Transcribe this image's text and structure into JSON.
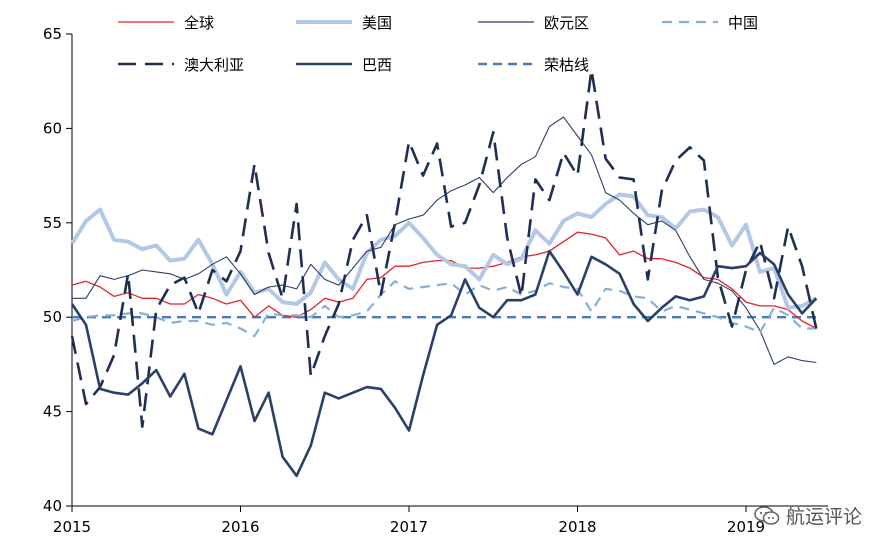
{
  "chart_data": {
    "type": "line",
    "title": "",
    "xlabel": "",
    "ylabel": "",
    "xlim": [
      2015,
      2019.5
    ],
    "ylim": [
      40,
      65
    ],
    "x_ticks": [
      2015,
      2016,
      2017,
      2018,
      2019
    ],
    "x_tick_labels": [
      "2015",
      "2016",
      "2017",
      "2018",
      "2019"
    ],
    "y_ticks": [
      40,
      45,
      50,
      55,
      60,
      65
    ],
    "y_tick_labels": [
      "40",
      "45",
      "50",
      "55",
      "60",
      "65"
    ],
    "grid": false,
    "legend_position": "top",
    "reference_line": {
      "name": "荣枯线",
      "value": 50,
      "color": "#4a7ab8"
    },
    "series": [
      {
        "name": "全球",
        "color": "#e0262a",
        "width": 1.3,
        "dash": "",
        "x": [
          2015.0,
          2015.083,
          2015.167,
          2015.25,
          2015.333,
          2015.417,
          2015.5,
          2015.583,
          2015.667,
          2015.75,
          2015.833,
          2015.917,
          2016.0,
          2016.083,
          2016.167,
          2016.25,
          2016.333,
          2016.417,
          2016.5,
          2016.583,
          2016.667,
          2016.75,
          2016.833,
          2016.917,
          2017.0,
          2017.083,
          2017.167,
          2017.25,
          2017.333,
          2017.417,
          2017.5,
          2017.583,
          2017.667,
          2017.75,
          2017.833,
          2017.917,
          2018.0,
          2018.083,
          2018.167,
          2018.25,
          2018.333,
          2018.417,
          2018.5,
          2018.583,
          2018.667,
          2018.75,
          2018.833,
          2018.917,
          2019.0,
          2019.083,
          2019.167,
          2019.25,
          2019.333,
          2019.417
        ],
        "y": [
          51.7,
          51.9,
          51.6,
          51.1,
          51.3,
          51.0,
          51.0,
          50.7,
          50.7,
          51.2,
          51.0,
          50.7,
          50.9,
          50.0,
          50.6,
          50.1,
          50.0,
          50.4,
          51.0,
          50.8,
          51.0,
          52.0,
          52.1,
          52.7,
          52.7,
          52.9,
          53.0,
          53.0,
          52.6,
          52.6,
          52.7,
          52.9,
          53.2,
          53.3,
          53.5,
          54.0,
          54.5,
          54.4,
          54.2,
          53.3,
          53.5,
          53.1,
          53.1,
          52.9,
          52.6,
          52.1,
          52.0,
          51.5,
          50.8,
          50.6,
          50.6,
          50.4,
          49.8,
          49.4
        ]
      },
      {
        "name": "美国",
        "color": "#b3c7e6",
        "width": 4,
        "dash": "",
        "x": [
          2015.0,
          2015.083,
          2015.167,
          2015.25,
          2015.333,
          2015.417,
          2015.5,
          2015.583,
          2015.667,
          2015.75,
          2015.833,
          2015.917,
          2016.0,
          2016.083,
          2016.167,
          2016.25,
          2016.333,
          2016.417,
          2016.5,
          2016.583,
          2016.667,
          2016.75,
          2016.833,
          2016.917,
          2017.0,
          2017.083,
          2017.167,
          2017.25,
          2017.333,
          2017.417,
          2017.5,
          2017.583,
          2017.667,
          2017.75,
          2017.833,
          2017.917,
          2018.0,
          2018.083,
          2018.167,
          2018.25,
          2018.333,
          2018.417,
          2018.5,
          2018.583,
          2018.667,
          2018.75,
          2018.833,
          2018.917,
          2019.0,
          2019.083,
          2019.167,
          2019.25,
          2019.333,
          2019.417
        ],
        "y": [
          53.9,
          55.1,
          55.7,
          54.1,
          54.0,
          53.6,
          53.8,
          53.0,
          53.1,
          54.1,
          52.8,
          51.2,
          52.4,
          51.3,
          51.5,
          50.8,
          50.7,
          51.3,
          52.9,
          52.0,
          51.5,
          53.4,
          54.1,
          54.3,
          55.0,
          54.2,
          53.3,
          52.8,
          52.7,
          52.0,
          53.3,
          52.8,
          53.1,
          54.6,
          53.9,
          55.1,
          55.5,
          55.3,
          56.0,
          56.5,
          56.4,
          55.4,
          55.3,
          54.7,
          55.6,
          55.7,
          55.3,
          53.8,
          54.9,
          52.4,
          52.6,
          50.5,
          50.6,
          51.0
        ]
      },
      {
        "name": "欧元区",
        "color": "#2c3e6b",
        "width": 1.1,
        "dash": "",
        "x": [
          2015.0,
          2015.083,
          2015.167,
          2015.25,
          2015.333,
          2015.417,
          2015.5,
          2015.583,
          2015.667,
          2015.75,
          2015.833,
          2015.917,
          2016.0,
          2016.083,
          2016.167,
          2016.25,
          2016.333,
          2016.417,
          2016.5,
          2016.583,
          2016.667,
          2016.75,
          2016.833,
          2016.917,
          2017.0,
          2017.083,
          2017.167,
          2017.25,
          2017.333,
          2017.417,
          2017.5,
          2017.583,
          2017.667,
          2017.75,
          2017.833,
          2017.917,
          2018.0,
          2018.083,
          2018.167,
          2018.25,
          2018.333,
          2018.417,
          2018.5,
          2018.583,
          2018.667,
          2018.75,
          2018.833,
          2018.917,
          2019.0,
          2019.083,
          2019.167,
          2019.25,
          2019.333,
          2019.417
        ],
        "y": [
          51.0,
          51.0,
          52.2,
          52.0,
          52.2,
          52.5,
          52.4,
          52.3,
          52.0,
          52.3,
          52.8,
          53.2,
          52.3,
          51.2,
          51.6,
          51.7,
          51.5,
          52.8,
          52.0,
          51.7,
          52.6,
          53.5,
          53.7,
          54.9,
          55.2,
          55.4,
          56.2,
          56.7,
          57.0,
          57.4,
          56.6,
          57.4,
          58.1,
          58.5,
          60.1,
          60.6,
          59.6,
          58.6,
          56.6,
          56.2,
          55.5,
          54.9,
          55.1,
          54.6,
          53.2,
          52.0,
          51.8,
          51.4,
          50.5,
          49.3,
          47.5,
          47.9,
          47.7,
          47.6
        ]
      },
      {
        "name": "中国",
        "color": "#8aaed6",
        "width": 2.2,
        "dash": "10,7",
        "x": [
          2015.0,
          2015.083,
          2015.167,
          2015.25,
          2015.333,
          2015.417,
          2015.5,
          2015.583,
          2015.667,
          2015.75,
          2015.833,
          2015.917,
          2016.0,
          2016.083,
          2016.167,
          2016.25,
          2016.333,
          2016.417,
          2016.5,
          2016.583,
          2016.667,
          2016.75,
          2016.833,
          2016.917,
          2017.0,
          2017.083,
          2017.167,
          2017.25,
          2017.333,
          2017.417,
          2017.5,
          2017.583,
          2017.667,
          2017.75,
          2017.833,
          2017.917,
          2018.0,
          2018.083,
          2018.167,
          2018.25,
          2018.333,
          2018.417,
          2018.5,
          2018.583,
          2018.667,
          2018.75,
          2018.833,
          2018.917,
          2019.0,
          2019.083,
          2019.167,
          2019.25,
          2019.333,
          2019.417
        ],
        "y": [
          49.8,
          50.0,
          50.1,
          50.1,
          50.2,
          50.2,
          50.0,
          49.7,
          49.8,
          49.8,
          49.6,
          49.7,
          49.4,
          49.0,
          50.2,
          50.1,
          50.1,
          50.0,
          50.6,
          50.0,
          50.1,
          50.3,
          51.2,
          51.9,
          51.5,
          51.6,
          51.7,
          51.8,
          51.2,
          51.7,
          51.4,
          51.6,
          51.2,
          51.4,
          51.8,
          51.6,
          51.5,
          50.3,
          51.5,
          51.4,
          51.1,
          51.0,
          50.3,
          50.6,
          50.4,
          50.2,
          50.0,
          49.7,
          49.5,
          49.2,
          50.5,
          50.1,
          49.4,
          49.4
        ]
      },
      {
        "name": "澳大利亚",
        "color": "#1f2f52",
        "width": 2.6,
        "dash": "18,9",
        "x": [
          2015.0,
          2015.083,
          2015.167,
          2015.25,
          2015.333,
          2015.417,
          2015.5,
          2015.583,
          2015.667,
          2015.75,
          2015.833,
          2015.917,
          2016.0,
          2016.083,
          2016.167,
          2016.25,
          2016.333,
          2016.417,
          2016.5,
          2016.583,
          2016.667,
          2016.75,
          2016.833,
          2016.917,
          2017.0,
          2017.083,
          2017.167,
          2017.25,
          2017.333,
          2017.417,
          2017.5,
          2017.583,
          2017.667,
          2017.75,
          2017.833,
          2017.917,
          2018.0,
          2018.083,
          2018.167,
          2018.25,
          2018.333,
          2018.417,
          2018.5,
          2018.583,
          2018.667,
          2018.75,
          2018.833,
          2018.917,
          2019.0,
          2019.083,
          2019.167,
          2019.25,
          2019.333,
          2019.417
        ],
        "y": [
          49.0,
          45.4,
          46.3,
          48.0,
          52.3,
          44.2,
          50.4,
          51.7,
          52.1,
          50.2,
          52.5,
          51.9,
          53.5,
          58.1,
          53.4,
          51.0,
          56.0,
          46.9,
          49.0,
          50.7,
          54.1,
          55.4,
          51.2,
          55.0,
          59.3,
          57.5,
          59.2,
          54.8,
          55.0,
          57.0,
          59.8,
          54.2,
          51.1,
          57.3,
          56.2,
          58.7,
          57.5,
          63.1,
          58.4,
          57.4,
          57.3,
          52.0,
          56.7,
          58.3,
          59.0,
          58.3,
          52.1,
          49.5,
          52.5,
          54.0,
          51.0,
          54.8,
          52.7,
          49.4
        ]
      },
      {
        "name": "巴西",
        "color": "#2a4066",
        "width": 2.6,
        "dash": "",
        "x": [
          2015.0,
          2015.083,
          2015.167,
          2015.25,
          2015.333,
          2015.417,
          2015.5,
          2015.583,
          2015.667,
          2015.75,
          2015.833,
          2015.917,
          2016.0,
          2016.083,
          2016.167,
          2016.25,
          2016.333,
          2016.417,
          2016.5,
          2016.583,
          2016.667,
          2016.75,
          2016.833,
          2016.917,
          2017.0,
          2017.083,
          2017.167,
          2017.25,
          2017.333,
          2017.417,
          2017.5,
          2017.583,
          2017.667,
          2017.75,
          2017.833,
          2017.917,
          2018.0,
          2018.083,
          2018.167,
          2018.25,
          2018.333,
          2018.417,
          2018.5,
          2018.583,
          2018.667,
          2018.75,
          2018.833,
          2018.917,
          2019.0,
          2019.083,
          2019.167,
          2019.25,
          2019.333,
          2019.417
        ],
        "y": [
          50.7,
          49.6,
          46.2,
          46.0,
          45.9,
          46.5,
          47.2,
          45.8,
          47.0,
          44.1,
          43.8,
          45.6,
          47.4,
          44.5,
          46.0,
          42.6,
          41.6,
          43.2,
          46.0,
          45.7,
          46.0,
          46.3,
          46.2,
          45.2,
          44.0,
          46.9,
          49.6,
          50.1,
          52.0,
          50.5,
          50.0,
          50.9,
          50.9,
          51.2,
          53.5,
          52.4,
          51.2,
          53.2,
          52.8,
          52.3,
          50.7,
          49.8,
          50.5,
          51.1,
          50.9,
          51.1,
          52.7,
          52.6,
          52.7,
          53.4,
          52.8,
          51.2,
          50.2,
          51.0
        ]
      }
    ]
  }
}
